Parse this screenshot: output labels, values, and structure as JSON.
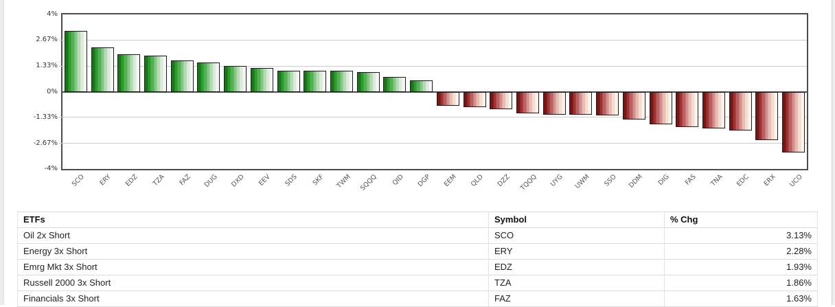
{
  "page": {
    "background": "#ffffff",
    "gutter_color": "#ececec"
  },
  "chart_data": {
    "type": "bar",
    "title": "",
    "xlabel": "",
    "ylabel": "",
    "ylim": [
      -4,
      4
    ],
    "grid": true,
    "legend": "none",
    "yticks": [
      {
        "label": "4%",
        "value": 4
      },
      {
        "label": "2.67%",
        "value": 2.67
      },
      {
        "label": "1.33%",
        "value": 1.33
      },
      {
        "label": "0%",
        "value": 0
      },
      {
        "label": "-1.33%",
        "value": -1.33
      },
      {
        "label": "-2.67%",
        "value": -2.67
      },
      {
        "label": "-4%",
        "value": -4
      }
    ],
    "categories": [
      "SCO",
      "ERY",
      "EDZ",
      "TZA",
      "FAZ",
      "DUG",
      "DXD",
      "EEV",
      "SDS",
      "SKF",
      "TWM",
      "SQQQ",
      "QID",
      "DGP",
      "EEM",
      "QLD",
      "DZZ",
      "TQQQ",
      "UYG",
      "UWM",
      "SSO",
      "DDM",
      "DIG",
      "FAS",
      "TNA",
      "EDC",
      "ERX",
      "UCO"
    ],
    "values": [
      3.13,
      2.28,
      1.93,
      1.86,
      1.63,
      1.52,
      1.33,
      1.22,
      1.1,
      1.09,
      1.08,
      1.0,
      0.75,
      0.59,
      -0.73,
      -0.79,
      -0.89,
      -1.12,
      -1.18,
      -1.19,
      -1.21,
      -1.43,
      -1.7,
      -1.83,
      -1.89,
      -2.0,
      -2.5,
      -3.14
    ],
    "positive_color": "#2d9b2d",
    "negative_color": "#9c3232",
    "bar_border_color": "#1a1a1a",
    "gridline_color": "#cccccc",
    "axis_color": "#4d4d4d"
  },
  "table": {
    "headers": [
      "ETFs",
      "Symbol",
      "% Chg"
    ],
    "rows": [
      {
        "name": "Oil 2x Short",
        "symbol": "SCO",
        "chg": "3.13%"
      },
      {
        "name": "Energy 3x Short",
        "symbol": "ERY",
        "chg": "2.28%"
      },
      {
        "name": "Emrg Mkt 3x Short",
        "symbol": "EDZ",
        "chg": "1.93%"
      },
      {
        "name": "Russell 2000 3x Short",
        "symbol": "TZA",
        "chg": "1.86%"
      },
      {
        "name": "Financials 3x Short",
        "symbol": "FAZ",
        "chg": "1.63%"
      }
    ]
  }
}
